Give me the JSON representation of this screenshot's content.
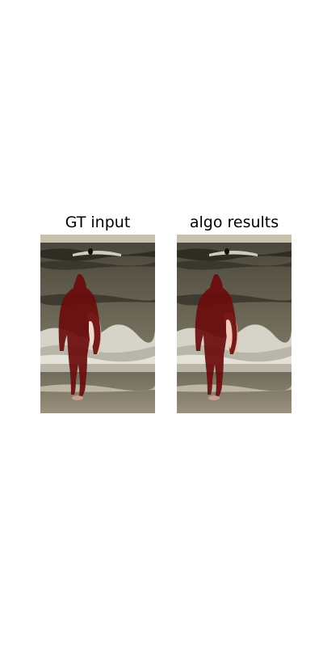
{
  "panels": [
    {
      "title": "GT input"
    },
    {
      "title": "algo results"
    }
  ],
  "colors": {
    "mask": "#6a0c0c",
    "sand": "#8a8170",
    "sea": "#5f5a4c",
    "foam": "#d6d3c8",
    "sky": "#c8c0ae"
  }
}
